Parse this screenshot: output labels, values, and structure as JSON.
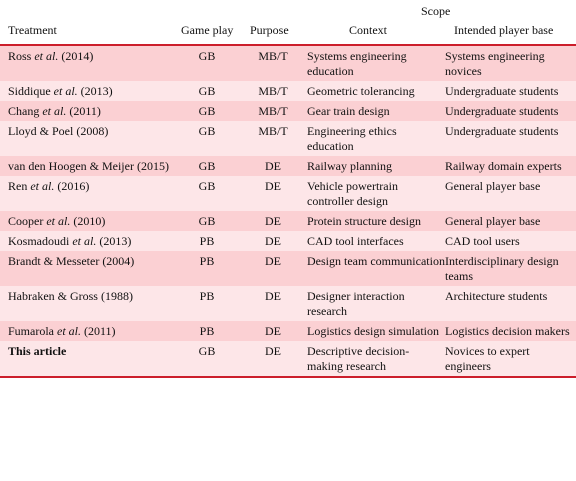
{
  "header": {
    "scope": "Scope",
    "treatment": "Treatment",
    "gameplay": "Game play",
    "purpose": "Purpose",
    "context": "Context",
    "intended": "Intended player base"
  },
  "rows": [
    {
      "treatment_pre": "Ross ",
      "treatment_em": "et al.",
      "treatment_post": " (2014)",
      "gameplay": "GB",
      "purpose": "MB/T",
      "context": "Systems engineering education",
      "intended": "Systems engineering novices"
    },
    {
      "treatment_pre": "Siddique ",
      "treatment_em": "et al.",
      "treatment_post": " (2013)",
      "gameplay": "GB",
      "purpose": "MB/T",
      "context": "Geometric tolerancing",
      "intended": "Undergraduate students"
    },
    {
      "treatment_pre": "Chang ",
      "treatment_em": "et al.",
      "treatment_post": " (2011)",
      "gameplay": "GB",
      "purpose": "MB/T",
      "context": "Gear train design",
      "intended": "Undergraduate students"
    },
    {
      "treatment_pre": "Lloyd & Poel (2008)",
      "treatment_em": "",
      "treatment_post": "",
      "gameplay": "GB",
      "purpose": "MB/T",
      "context": "Engineering ethics education",
      "intended": "Undergraduate students"
    },
    {
      "treatment_pre": "van den Hoogen & Meijer (2015)",
      "treatment_em": "",
      "treatment_post": "",
      "gameplay": "GB",
      "purpose": "DE",
      "context": "Railway planning",
      "intended": "Railway domain experts"
    },
    {
      "treatment_pre": "Ren ",
      "treatment_em": "et al.",
      "treatment_post": " (2016)",
      "gameplay": "GB",
      "purpose": "DE",
      "context": "Vehicle powertrain controller design",
      "intended": "General player base"
    },
    {
      "treatment_pre": "Cooper ",
      "treatment_em": "et al.",
      "treatment_post": " (2010)",
      "gameplay": "GB",
      "purpose": "DE",
      "context": "Protein structure design",
      "intended": "General player base"
    },
    {
      "treatment_pre": "Kosmadoudi ",
      "treatment_em": "et al.",
      "treatment_post": " (2013)",
      "gameplay": "PB",
      "purpose": "DE",
      "context": "CAD tool interfaces",
      "intended": "CAD tool users"
    },
    {
      "treatment_pre": "Brandt & Messeter (2004)",
      "treatment_em": "",
      "treatment_post": "",
      "gameplay": "PB",
      "purpose": "DE",
      "context": "Design team communication",
      "intended": "Interdisciplinary design teams"
    },
    {
      "treatment_pre": "Habraken & Gross (1988)",
      "treatment_em": "",
      "treatment_post": "",
      "gameplay": "PB",
      "purpose": "DE",
      "context": "Designer interaction research",
      "intended": "Architecture students"
    },
    {
      "treatment_pre": "Fumarola ",
      "treatment_em": "et al.",
      "treatment_post": " (2011)",
      "gameplay": "PB",
      "purpose": "DE",
      "context": "Logistics design simulation",
      "intended": "Logistics decision makers"
    },
    {
      "treatment_pre": "This article",
      "treatment_em": "",
      "treatment_post": "",
      "gameplay": "GB",
      "purpose": "DE",
      "context": "Descriptive decision-making research",
      "intended": "Novices to expert engineers",
      "bold": true
    }
  ]
}
